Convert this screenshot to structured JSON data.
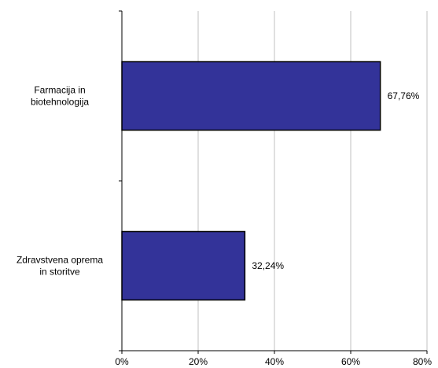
{
  "chart_data": {
    "type": "bar",
    "orientation": "horizontal",
    "categories": [
      [
        "Farmacija in",
        "biotehnologija"
      ],
      [
        "Zdravstvena oprema",
        "in storitve"
      ]
    ],
    "values": [
      67.76,
      32.24
    ],
    "value_labels": [
      "67,76%",
      "32,24%"
    ],
    "xlim": [
      0,
      80
    ],
    "xticks": [
      0,
      20,
      40,
      60,
      80
    ],
    "xtick_labels": [
      "0%",
      "20%",
      "40%",
      "60%",
      "80%"
    ],
    "title": "",
    "xlabel": "",
    "ylabel": "",
    "grid": "vertical",
    "legend": "none",
    "colors": {
      "bar": "#333399",
      "bar_edge": "#000000",
      "grid": "#c0c0c0",
      "axis": "#000000"
    }
  }
}
